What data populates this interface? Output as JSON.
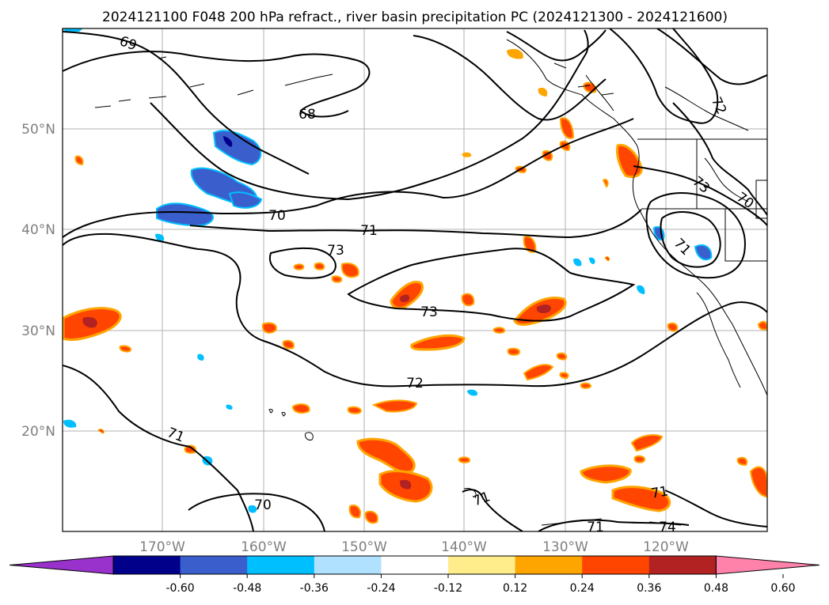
{
  "title": "2024121100 F048 200 hPa refract., river basin precipitation PC (2024121300 - 2024121600)",
  "latitude_labels": [
    "50°N",
    "40°N",
    "30°N",
    "20°N"
  ],
  "longitude_labels": [
    "170°W",
    "160°W",
    "150°W",
    "140°W",
    "130°W",
    "120°W"
  ],
  "contour_labels": [
    "69",
    "68",
    "70",
    "71",
    "73",
    "73",
    "72",
    "71",
    "70",
    "71",
    "71",
    "71",
    "74",
    "72",
    "73",
    "70",
    "71"
  ],
  "colorbar": {
    "tick_labels": [
      "-0.60",
      "-0.48",
      "-0.36",
      "-0.24",
      "-0.12",
      "0.12",
      "0.24",
      "0.36",
      "0.48",
      "0.60"
    ],
    "colors": [
      "#9932cc",
      "#00008b",
      "#3a5fcd",
      "#00bfff",
      "#b0e2ff",
      "#ffffff",
      "#ffec8b",
      "#ffa500",
      "#ff4500",
      "#b22222",
      "#ff82ab"
    ]
  }
}
